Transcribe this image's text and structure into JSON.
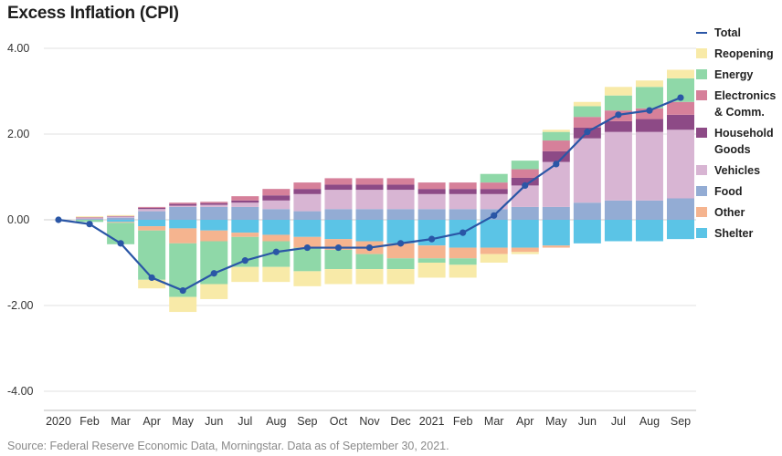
{
  "source_note": "Source: Federal Reserve Economic Data, Morningstar. Data as of September 30, 2021.",
  "chart_data": {
    "type": "bar",
    "subtype": "stacked-bar-with-line",
    "title": "Excess Inflation (CPI)",
    "categories": [
      "2020",
      "Feb",
      "Mar",
      "Apr",
      "May",
      "Jun",
      "Jul",
      "Aug",
      "Sep",
      "Oct",
      "Nov",
      "Dec",
      "2021",
      "Feb",
      "Mar",
      "Apr",
      "May",
      "Jun",
      "Jul",
      "Aug",
      "Sep"
    ],
    "ylim": [
      -4,
      4
    ],
    "yticks": [
      -4,
      -2,
      0,
      2,
      4
    ],
    "ytick_labels": [
      "-4.00",
      "-2.00",
      "0.00",
      "2.00",
      "4.00"
    ],
    "xlabel": "",
    "ylabel": "",
    "grid": "horizontal",
    "legend_position": "right",
    "series": [
      {
        "name": "Shelter",
        "color": "#5bc4e6",
        "values": [
          0,
          0,
          -0.05,
          -0.15,
          -0.2,
          -0.25,
          -0.3,
          -0.35,
          -0.4,
          -0.45,
          -0.5,
          -0.55,
          -0.6,
          -0.65,
          -0.65,
          -0.65,
          -0.6,
          -0.55,
          -0.5,
          -0.5,
          -0.45
        ]
      },
      {
        "name": "Other",
        "color": "#f5b48f",
        "values": [
          0,
          0,
          -0.02,
          -0.1,
          -0.35,
          -0.25,
          -0.1,
          -0.15,
          -0.25,
          -0.25,
          -0.3,
          -0.35,
          -0.3,
          -0.25,
          -0.15,
          -0.1,
          -0.05,
          0.0,
          0.0,
          0.0,
          0.0
        ]
      },
      {
        "name": "Food",
        "color": "#93acd4",
        "values": [
          0,
          0.02,
          0.05,
          0.2,
          0.3,
          0.3,
          0.3,
          0.25,
          0.2,
          0.25,
          0.25,
          0.25,
          0.25,
          0.25,
          0.25,
          0.3,
          0.3,
          0.4,
          0.45,
          0.45,
          0.5
        ]
      },
      {
        "name": "Vehicles",
        "color": "#d8b5d3",
        "values": [
          0,
          0.02,
          0.02,
          0.05,
          0.03,
          0.05,
          0.1,
          0.2,
          0.4,
          0.45,
          0.45,
          0.45,
          0.35,
          0.35,
          0.35,
          0.5,
          1.05,
          1.5,
          1.6,
          1.6,
          1.6
        ]
      },
      {
        "name": "Household Goods",
        "color": "#8d4a86",
        "values": [
          0,
          0.01,
          0.01,
          0.03,
          0.04,
          0.04,
          0.05,
          0.12,
          0.12,
          0.12,
          0.12,
          0.12,
          0.12,
          0.12,
          0.12,
          0.18,
          0.25,
          0.25,
          0.25,
          0.3,
          0.35
        ]
      },
      {
        "name": "Electronics & Comm.",
        "color": "#d6809a",
        "values": [
          0,
          0.01,
          0.01,
          0.02,
          0.03,
          0.03,
          0.1,
          0.15,
          0.15,
          0.15,
          0.15,
          0.15,
          0.15,
          0.15,
          0.15,
          0.2,
          0.25,
          0.25,
          0.25,
          0.25,
          0.3
        ]
      },
      {
        "name": "Energy",
        "color": "#8fd8a8",
        "values": [
          0,
          -0.05,
          -0.5,
          -1.15,
          -1.25,
          -1.0,
          -0.7,
          -0.6,
          -0.55,
          -0.45,
          -0.35,
          -0.25,
          -0.1,
          -0.15,
          0.2,
          0.2,
          0.2,
          0.25,
          0.35,
          0.5,
          0.55
        ]
      },
      {
        "name": "Reopening",
        "color": "#f8eaa8",
        "values": [
          0,
          0.02,
          0.02,
          -0.2,
          -0.35,
          -0.35,
          -0.35,
          -0.35,
          -0.35,
          -0.35,
          -0.35,
          -0.35,
          -0.35,
          -0.3,
          -0.2,
          -0.05,
          0.05,
          0.1,
          0.2,
          0.15,
          0.2
        ]
      },
      {
        "name": "Total",
        "type": "line",
        "color": "#2a56a6",
        "values": [
          0.0,
          -0.1,
          -0.55,
          -1.35,
          -1.65,
          -1.25,
          -0.95,
          -0.75,
          -0.65,
          -0.65,
          -0.65,
          -0.55,
          -0.45,
          -0.3,
          0.1,
          0.8,
          1.3,
          2.05,
          2.45,
          2.55,
          2.85
        ]
      }
    ],
    "legend_entries": [
      {
        "label": "Total",
        "kind": "line",
        "color": "#2a56a6"
      },
      {
        "label": "Reopening",
        "kind": "box",
        "color": "#f8eaa8"
      },
      {
        "label": "Energy",
        "kind": "box",
        "color": "#8fd8a8"
      },
      {
        "label": "Electronics & Comm.",
        "kind": "box",
        "color": "#d6809a"
      },
      {
        "label": "Household Goods",
        "kind": "box",
        "color": "#8d4a86"
      },
      {
        "label": "Vehicles",
        "kind": "box",
        "color": "#d8b5d3"
      },
      {
        "label": "Food",
        "kind": "box",
        "color": "#93acd4"
      },
      {
        "label": "Other",
        "kind": "box",
        "color": "#f5b48f"
      },
      {
        "label": "Shelter",
        "kind": "box",
        "color": "#5bc4e6"
      }
    ]
  }
}
